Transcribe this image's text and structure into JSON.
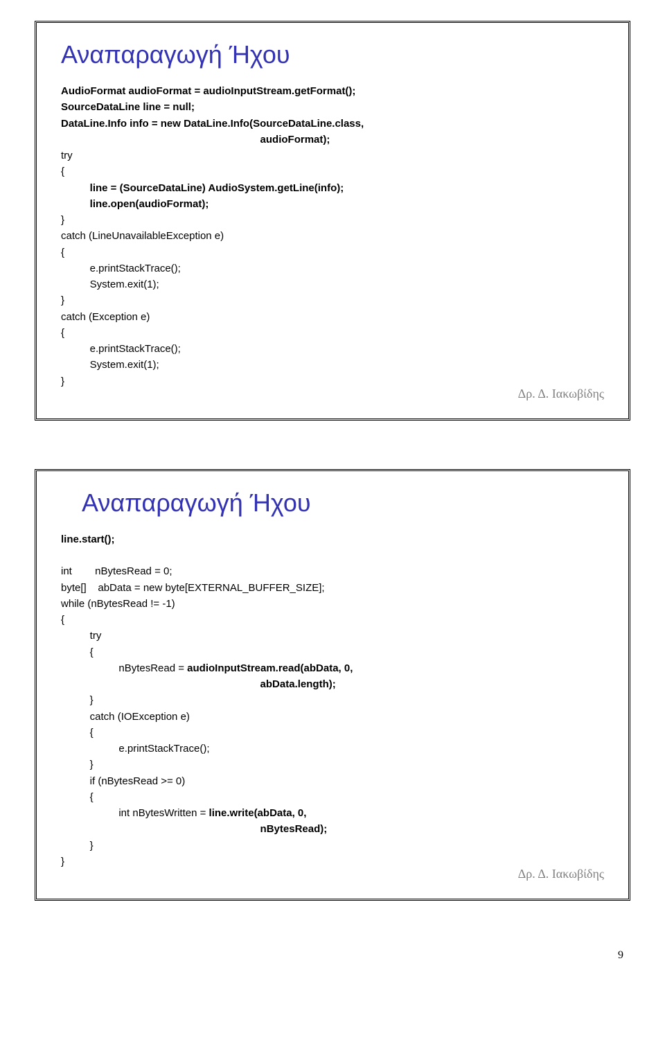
{
  "page_number": "9",
  "author": "Δρ. Δ. Ιακωβίδης",
  "slide1": {
    "title": "Αναπαραγωγή Ήχου",
    "c01": "AudioFormat audioFormat = audioInputStream.getFormat();",
    "c02": "SourceDataLine line = null;",
    "c03": "DataLine.Info info = new DataLine.Info(SourceDataLine.class,",
    "c04": "                                                                     audioFormat);",
    "c05": "try",
    "c06": "{",
    "c07": "          line = (SourceDataLine) AudioSystem.getLine(info);",
    "c08": "          line.open(audioFormat);",
    "c09": "}",
    "c10": "catch (LineUnavailableException e)",
    "c11": "{",
    "c12": "          e.printStackTrace();",
    "c13": "          System.exit(1);",
    "c14": "}",
    "c15": "catch (Exception e)",
    "c16": "{",
    "c17": "          e.printStackTrace();",
    "c18": "          System.exit(1);",
    "c19": "}"
  },
  "slide2": {
    "title": "Αναπαραγωγή Ήχου",
    "c01": "line.start();",
    "c02": "int        nBytesRead = 0;",
    "c03": "byte[]    abData = new byte[EXTERNAL_BUFFER_SIZE];",
    "c04": "while (nBytesRead != -1)",
    "c05": "{",
    "c06": "          try",
    "c07": "          {",
    "c08a": "                    nBytesRead = ",
    "c08b": "audioInputStream.read(abData, 0,",
    "c09": "                                                                     abData.length);",
    "c10": "          }",
    "c11": "          catch (IOException e)",
    "c12": "          {",
    "c13": "                    e.printStackTrace();",
    "c14": "          }",
    "c15": "          if (nBytesRead >= 0)",
    "c16": "          {",
    "c17a": "                    int nBytesWritten = ",
    "c17b": "line.write(abData, 0,",
    "c18": "                                                                     nBytesRead);",
    "c19": "          }",
    "c20": "}"
  }
}
